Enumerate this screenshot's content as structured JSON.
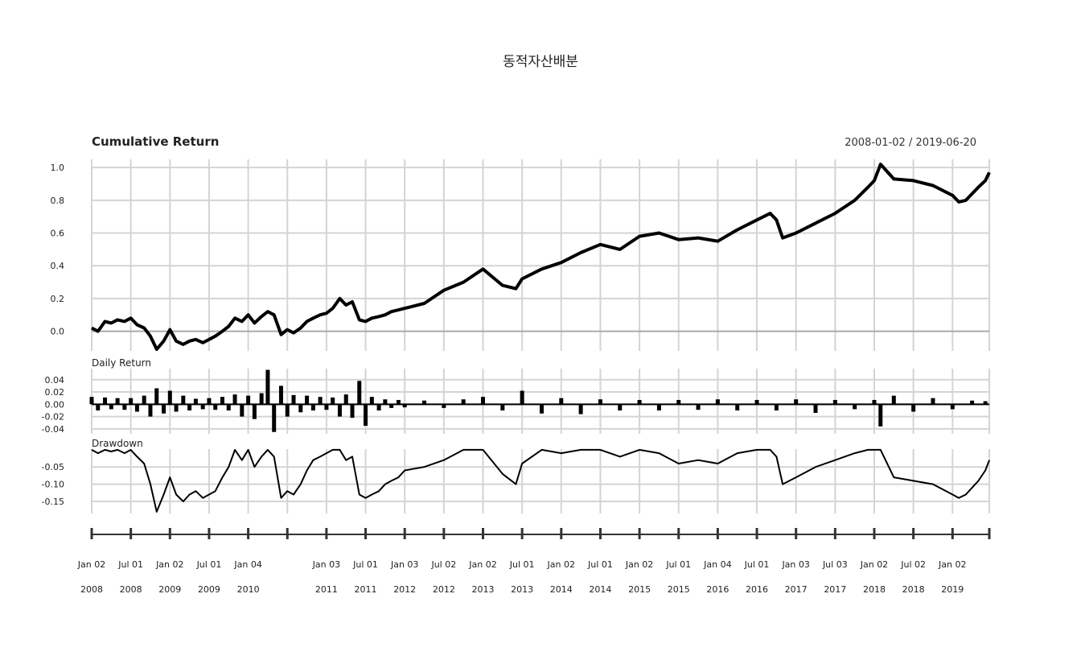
{
  "title": "동적자산배분",
  "date_range": "2008-01-02 / 2019-06-20",
  "chart_data": [
    {
      "type": "line",
      "panel": "cumulative",
      "title": "Cumulative Return",
      "ylim": [
        -0.12,
        1.05
      ],
      "yticks": [
        "1.0",
        "0.8",
        "0.6",
        "0.4",
        "0.2",
        "0.0"
      ],
      "ytick_values": [
        1.0,
        0.8,
        0.6,
        0.4,
        0.2,
        0.0
      ],
      "x": [
        2008.0,
        2008.08,
        2008.17,
        2008.25,
        2008.33,
        2008.42,
        2008.5,
        2008.58,
        2008.67,
        2008.75,
        2008.83,
        2008.92,
        2009.0,
        2009.08,
        2009.17,
        2009.25,
        2009.33,
        2009.42,
        2009.5,
        2009.58,
        2009.67,
        2009.75,
        2009.83,
        2009.92,
        2010.0,
        2010.08,
        2010.17,
        2010.25,
        2010.33,
        2010.42,
        2010.5,
        2010.58,
        2010.67,
        2010.75,
        2010.83,
        2010.92,
        2011.0,
        2011.08,
        2011.17,
        2011.25,
        2011.33,
        2011.42,
        2011.5,
        2011.58,
        2011.67,
        2011.75,
        2011.83,
        2011.92,
        2012.0,
        2012.25,
        2012.5,
        2012.75,
        2013.0,
        2013.25,
        2013.42,
        2013.5,
        2013.75,
        2014.0,
        2014.25,
        2014.5,
        2014.75,
        2015.0,
        2015.25,
        2015.5,
        2015.75,
        2016.0,
        2016.25,
        2016.5,
        2016.67,
        2016.75,
        2016.83,
        2017.0,
        2017.25,
        2017.5,
        2017.75,
        2017.92,
        2018.0,
        2018.08,
        2018.25,
        2018.5,
        2018.75,
        2019.0,
        2019.08,
        2019.17,
        2019.25,
        2019.33,
        2019.42,
        2019.47
      ],
      "values": [
        0.02,
        0.0,
        0.06,
        0.05,
        0.07,
        0.06,
        0.08,
        0.04,
        0.02,
        -0.03,
        -0.11,
        -0.06,
        0.01,
        -0.06,
        -0.08,
        -0.06,
        -0.05,
        -0.07,
        -0.05,
        -0.03,
        0.0,
        0.03,
        0.08,
        0.06,
        0.1,
        0.05,
        0.09,
        0.12,
        0.1,
        -0.02,
        0.01,
        -0.01,
        0.02,
        0.06,
        0.08,
        0.1,
        0.11,
        0.14,
        0.2,
        0.16,
        0.18,
        0.07,
        0.06,
        0.08,
        0.09,
        0.1,
        0.12,
        0.13,
        0.14,
        0.17,
        0.25,
        0.3,
        0.38,
        0.28,
        0.26,
        0.32,
        0.38,
        0.42,
        0.48,
        0.53,
        0.5,
        0.58,
        0.6,
        0.56,
        0.57,
        0.55,
        0.62,
        0.68,
        0.72,
        0.68,
        0.57,
        0.6,
        0.66,
        0.72,
        0.8,
        0.88,
        0.92,
        1.02,
        0.93,
        0.92,
        0.89,
        0.83,
        0.79,
        0.8,
        0.84,
        0.88,
        0.92,
        0.97
      ]
    },
    {
      "type": "bar",
      "panel": "daily",
      "title": "Daily Return",
      "ylim": [
        -0.048,
        0.058
      ],
      "yticks": [
        "0.04",
        "0.02",
        "0.00",
        "-0.02",
        "-0.04"
      ],
      "ytick_values": [
        0.04,
        0.02,
        0.0,
        -0.02,
        -0.04
      ],
      "x": [
        2008.0,
        2008.08,
        2008.17,
        2008.25,
        2008.33,
        2008.42,
        2008.5,
        2008.58,
        2008.67,
        2008.75,
        2008.83,
        2008.92,
        2009.0,
        2009.08,
        2009.17,
        2009.25,
        2009.33,
        2009.42,
        2009.5,
        2009.58,
        2009.67,
        2009.75,
        2009.83,
        2009.92,
        2010.0,
        2010.08,
        2010.17,
        2010.25,
        2010.33,
        2010.42,
        2010.5,
        2010.58,
        2010.67,
        2010.75,
        2010.83,
        2010.92,
        2011.0,
        2011.08,
        2011.17,
        2011.25,
        2011.33,
        2011.42,
        2011.5,
        2011.58,
        2011.67,
        2011.75,
        2011.83,
        2011.92,
        2012.0,
        2012.25,
        2012.5,
        2012.75,
        2013.0,
        2013.25,
        2013.5,
        2013.75,
        2014.0,
        2014.25,
        2014.5,
        2014.75,
        2015.0,
        2015.25,
        2015.5,
        2015.75,
        2016.0,
        2016.25,
        2016.5,
        2016.75,
        2017.0,
        2017.25,
        2017.5,
        2017.75,
        2018.0,
        2018.08,
        2018.25,
        2018.5,
        2018.75,
        2019.0,
        2019.25,
        2019.42
      ],
      "values": [
        0.012,
        -0.01,
        0.011,
        -0.008,
        0.01,
        -0.009,
        0.01,
        -0.012,
        0.014,
        -0.02,
        0.026,
        -0.015,
        0.022,
        -0.012,
        0.014,
        -0.01,
        0.009,
        -0.008,
        0.01,
        -0.009,
        0.012,
        -0.01,
        0.016,
        -0.02,
        0.014,
        -0.024,
        0.018,
        0.056,
        -0.045,
        0.03,
        -0.02,
        0.015,
        -0.013,
        0.014,
        -0.01,
        0.012,
        -0.009,
        0.011,
        -0.02,
        0.016,
        -0.022,
        0.038,
        -0.035,
        0.012,
        -0.01,
        0.008,
        -0.006,
        0.007,
        -0.005,
        0.006,
        -0.006,
        0.008,
        0.012,
        -0.01,
        0.022,
        -0.015,
        0.01,
        -0.016,
        0.008,
        -0.01,
        0.007,
        -0.01,
        0.007,
        -0.009,
        0.008,
        -0.01,
        0.007,
        -0.01,
        0.008,
        -0.014,
        0.007,
        -0.008,
        0.007,
        -0.036,
        0.014,
        -0.012,
        0.01,
        -0.008,
        0.006,
        0.005
      ]
    },
    {
      "type": "line",
      "panel": "drawdown",
      "title": "Drawdown",
      "ylim": [
        -0.185,
        0.002
      ],
      "yticks": [
        "-0.05",
        "-0.10",
        "-0.15"
      ],
      "ytick_values": [
        -0.05,
        -0.1,
        -0.15
      ],
      "x": [
        2008.0,
        2008.08,
        2008.17,
        2008.25,
        2008.33,
        2008.42,
        2008.5,
        2008.58,
        2008.67,
        2008.75,
        2008.83,
        2008.92,
        2009.0,
        2009.08,
        2009.17,
        2009.25,
        2009.33,
        2009.42,
        2009.5,
        2009.58,
        2009.67,
        2009.75,
        2009.83,
        2009.92,
        2010.0,
        2010.08,
        2010.17,
        2010.25,
        2010.33,
        2010.42,
        2010.5,
        2010.58,
        2010.67,
        2010.75,
        2010.83,
        2010.92,
        2011.0,
        2011.08,
        2011.17,
        2011.25,
        2011.33,
        2011.42,
        2011.5,
        2011.58,
        2011.67,
        2011.75,
        2011.83,
        2011.92,
        2012.0,
        2012.25,
        2012.5,
        2012.75,
        2013.0,
        2013.25,
        2013.42,
        2013.5,
        2013.75,
        2014.0,
        2014.25,
        2014.5,
        2014.75,
        2015.0,
        2015.25,
        2015.5,
        2015.75,
        2016.0,
        2016.25,
        2016.5,
        2016.67,
        2016.75,
        2016.83,
        2017.0,
        2017.25,
        2017.5,
        2017.75,
        2017.92,
        2018.0,
        2018.08,
        2018.25,
        2018.5,
        2018.75,
        2019.0,
        2019.08,
        2019.17,
        2019.25,
        2019.33,
        2019.42,
        2019.47
      ],
      "values": [
        0.0,
        -0.01,
        0.0,
        -0.005,
        0.0,
        -0.01,
        0.0,
        -0.02,
        -0.04,
        -0.1,
        -0.18,
        -0.13,
        -0.08,
        -0.13,
        -0.15,
        -0.13,
        -0.12,
        -0.14,
        -0.13,
        -0.12,
        -0.08,
        -0.05,
        0.0,
        -0.03,
        0.0,
        -0.05,
        -0.02,
        0.0,
        -0.02,
        -0.14,
        -0.12,
        -0.13,
        -0.1,
        -0.06,
        -0.03,
        -0.02,
        -0.01,
        0.0,
        0.0,
        -0.03,
        -0.02,
        -0.13,
        -0.14,
        -0.13,
        -0.12,
        -0.1,
        -0.09,
        -0.08,
        -0.06,
        -0.05,
        -0.03,
        0.0,
        0.0,
        -0.07,
        -0.1,
        -0.04,
        0.0,
        -0.01,
        0.0,
        0.0,
        -0.02,
        0.0,
        -0.01,
        -0.04,
        -0.03,
        -0.04,
        -0.01,
        0.0,
        0.0,
        -0.02,
        -0.1,
        -0.08,
        -0.05,
        -0.03,
        -0.01,
        0.0,
        0.0,
        0.0,
        -0.08,
        -0.09,
        -0.1,
        -0.13,
        -0.14,
        -0.13,
        -0.11,
        -0.09,
        -0.06,
        -0.03
      ]
    }
  ],
  "x_axis": {
    "domain": [
      2008.0,
      2019.47
    ],
    "ticks": [
      {
        "x": 2008.0,
        "label": "Jan 02",
        "year": "2008"
      },
      {
        "x": 2008.5,
        "label": "Jul 01",
        "year": "2008"
      },
      {
        "x": 2009.0,
        "label": "Jan 02",
        "year": "2009"
      },
      {
        "x": 2009.5,
        "label": "Jul 01",
        "year": "2009"
      },
      {
        "x": 2010.0,
        "label": "Jan 04",
        "year": "2010"
      },
      {
        "x": 2011.0,
        "label": "Jan 03",
        "year": "2011"
      },
      {
        "x": 2011.5,
        "label": "Jul 01",
        "year": "2011"
      },
      {
        "x": 2012.0,
        "label": "Jan 03",
        "year": "2012"
      },
      {
        "x": 2012.5,
        "label": "Jul 02",
        "year": "2012"
      },
      {
        "x": 2013.0,
        "label": "Jan 02",
        "year": "2013"
      },
      {
        "x": 2013.5,
        "label": "Jul 01",
        "year": "2013"
      },
      {
        "x": 2014.0,
        "label": "Jan 02",
        "year": "2014"
      },
      {
        "x": 2014.5,
        "label": "Jul 01",
        "year": "2014"
      },
      {
        "x": 2015.0,
        "label": "Jan 02",
        "year": "2015"
      },
      {
        "x": 2015.5,
        "label": "Jul 01",
        "year": "2015"
      },
      {
        "x": 2016.0,
        "label": "Jan 04",
        "year": "2016"
      },
      {
        "x": 2016.5,
        "label": "Jul 01",
        "year": "2016"
      },
      {
        "x": 2017.0,
        "label": "Jan 03",
        "year": "2017"
      },
      {
        "x": 2017.5,
        "label": "Jul 03",
        "year": "2017"
      },
      {
        "x": 2018.0,
        "label": "Jan 02",
        "year": "2018"
      },
      {
        "x": 2018.5,
        "label": "Jul 02",
        "year": "2018"
      },
      {
        "x": 2019.0,
        "label": "Jan 02",
        "year": "2019"
      }
    ],
    "gridlines": [
      2008.0,
      2008.5,
      2009.0,
      2009.5,
      2010.0,
      2010.5,
      2011.0,
      2011.5,
      2012.0,
      2012.5,
      2013.0,
      2013.5,
      2014.0,
      2014.5,
      2015.0,
      2015.5,
      2016.0,
      2016.5,
      2017.0,
      2017.5,
      2018.0,
      2018.5,
      2019.0,
      2019.47
    ]
  }
}
